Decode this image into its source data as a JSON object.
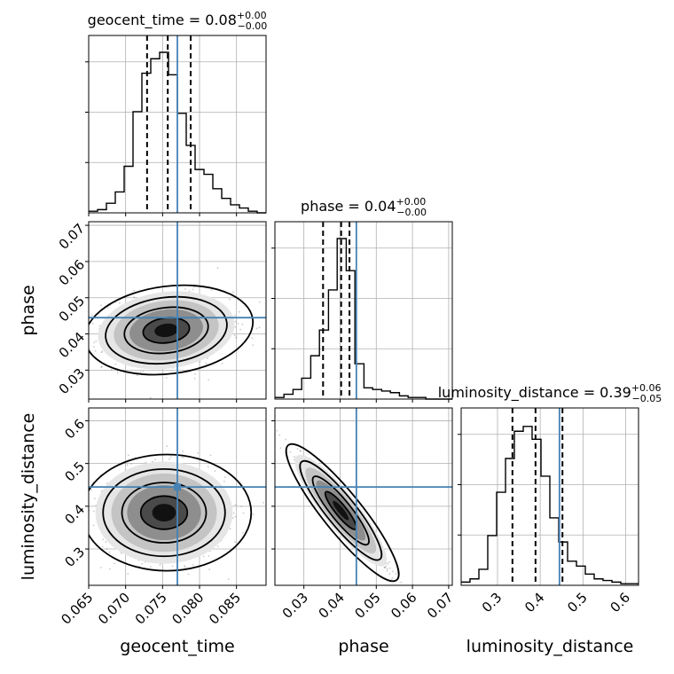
{
  "chart_data": {
    "type": "corner",
    "parameters": [
      "geocent_time",
      "phase",
      "luminosity_distance"
    ],
    "truths": {
      "geocent_time": 0.077,
      "phase": 0.0445,
      "luminosity_distance": 0.445
    },
    "titles": [
      {
        "param": "geocent_time",
        "label": "geocent_time = 0.08",
        "plus": "+0.00",
        "minus": "−0.00"
      },
      {
        "param": "phase",
        "label": "phase = 0.04",
        "plus": "+0.00",
        "minus": "−0.00"
      },
      {
        "param": "luminosity_distance",
        "label": "luminosity_distance = 0.39",
        "plus": "+0.06",
        "minus": "−0.05"
      }
    ],
    "axes": {
      "geocent_time": {
        "range": [
          0.065,
          0.089
        ],
        "ticks": [
          "0.065",
          "0.070",
          "0.075",
          "0.080",
          "0.085"
        ]
      },
      "phase": {
        "range": [
          0.022,
          0.071
        ],
        "ticks": [
          "0.03",
          "0.04",
          "0.05",
          "0.06",
          "0.07"
        ]
      },
      "luminosity_distance": {
        "range": [
          0.215,
          0.63
        ],
        "ticks": [
          "0.3",
          "0.4",
          "0.5",
          "0.6"
        ]
      }
    },
    "histograms": [
      {
        "param": "geocent_time",
        "quantiles": [
          0.0729,
          0.0757,
          0.0788
        ],
        "bin_edges": [
          0.065,
          0.0662,
          0.0674,
          0.0686,
          0.0698,
          0.071,
          0.0722,
          0.0734,
          0.0746,
          0.0758,
          0.077,
          0.0782,
          0.0794,
          0.0806,
          0.0818,
          0.083,
          0.0842,
          0.0854,
          0.0866,
          0.0878,
          0.089
        ],
        "counts": [
          0.01,
          0.02,
          0.06,
          0.13,
          0.29,
          0.63,
          0.87,
          0.96,
          1.0,
          0.86,
          0.62,
          0.42,
          0.27,
          0.24,
          0.15,
          0.09,
          0.05,
          0.03,
          0.01,
          0.0
        ]
      },
      {
        "param": "phase",
        "quantiles": [
          0.0353,
          0.0403,
          0.0426
        ],
        "bin_edges": [
          0.022,
          0.0245,
          0.027,
          0.0294,
          0.0319,
          0.0343,
          0.0368,
          0.0392,
          0.0417,
          0.0441,
          0.0466,
          0.049,
          0.0515,
          0.0539,
          0.0564,
          0.0588,
          0.0612,
          0.0637,
          0.0661,
          0.0686,
          0.071
        ],
        "counts": [
          0.01,
          0.03,
          0.06,
          0.13,
          0.27,
          0.43,
          0.68,
          1.0,
          0.8,
          0.22,
          0.07,
          0.06,
          0.05,
          0.04,
          0.02,
          0.01,
          0.01,
          0.0,
          0.0,
          0.0
        ]
      },
      {
        "param": "luminosity_distance",
        "quantiles": [
          0.335,
          0.389,
          0.452
        ],
        "bin_edges": [
          0.215,
          0.2357,
          0.2565,
          0.2772,
          0.298,
          0.3188,
          0.3395,
          0.3603,
          0.381,
          0.4018,
          0.4225,
          0.4433,
          0.464,
          0.4848,
          0.5055,
          0.5263,
          0.547,
          0.5678,
          0.5885,
          0.6093,
          0.63
        ],
        "counts": [
          0.02,
          0.04,
          0.1,
          0.31,
          0.58,
          0.79,
          0.96,
          0.99,
          0.91,
          0.68,
          0.42,
          0.27,
          0.15,
          0.12,
          0.07,
          0.04,
          0.03,
          0.02,
          0.01,
          0.01
        ]
      }
    ],
    "joint": [
      {
        "x": "geocent_time",
        "y": "phase",
        "center": [
          0.0755,
          0.041
        ],
        "spread": [
          0.0042,
          0.0048
        ],
        "corr": 0.1,
        "truth_marker": false
      },
      {
        "x": "geocent_time",
        "y": "luminosity_distance",
        "center": [
          0.0752,
          0.385
        ],
        "spread": [
          0.0042,
          0.054
        ],
        "corr": 0.0,
        "truth_marker": true
      },
      {
        "x": "phase",
        "y": "luminosity_distance",
        "center": [
          0.0402,
          0.39
        ],
        "spread": [
          0.0055,
          0.058
        ],
        "corr": -0.97,
        "truth_marker": false
      }
    ],
    "grid": true
  }
}
